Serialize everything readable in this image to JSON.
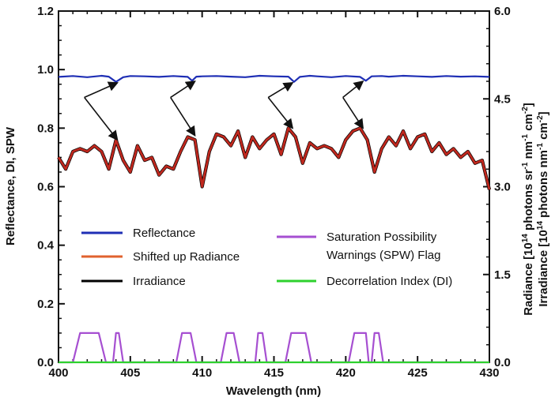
{
  "chart_data": {
    "type": "line",
    "xlabel": "Wavelength (nm)",
    "ylabel_left": "Reflectance, DI, SPW",
    "ylabel_right_line1": "Radiance [10",
    "ylabel_right_line1_sup1": "14",
    "ylabel_right_line1_mid": " photons sr",
    "ylabel_right_line1_sup2": "-1",
    "ylabel_right_line1_mid2": " nm",
    "ylabel_right_line1_sup3": "-1",
    "ylabel_right_line1_mid3": " cm",
    "ylabel_right_line1_sup4": "-2",
    "ylabel_right_line1_end": "]",
    "ylabel_right_line2": "Irradiance [10",
    "ylabel_right_line2_sup1": "14",
    "ylabel_right_line2_mid": " photons nm",
    "ylabel_right_line2_sup2": "-1",
    "ylabel_right_line2_mid2": " cm",
    "ylabel_right_line2_sup3": "-2",
    "ylabel_right_line2_end": "]",
    "xlim": [
      400,
      430
    ],
    "ylim_left": [
      0,
      1.2
    ],
    "ylim_right": [
      0,
      6.0
    ],
    "x_ticks": [
      400,
      405,
      410,
      415,
      420,
      425,
      430
    ],
    "x_tick_labels": [
      "400",
      "405",
      "410",
      "415",
      "420",
      "425",
      "430"
    ],
    "y_left_ticks": [
      0,
      0.2,
      0.4,
      0.6,
      0.8,
      1.0,
      1.2
    ],
    "y_left_tick_labels": [
      "0.0",
      "0.2",
      "0.4",
      "0.6",
      "0.8",
      "1.0",
      "1.2"
    ],
    "y_right_ticks": [
      0,
      1.5,
      3.0,
      4.5,
      6.0
    ],
    "y_right_tick_labels": [
      "0.0",
      "1.5",
      "3.0",
      "4.5",
      "6.0"
    ],
    "legend": {
      "reflectance": "Reflectance",
      "shifted_radiance": "Shifted up Radiance",
      "irradiance": "Irradiance",
      "spw_line1": "Saturation Possibility",
      "spw_line2": "Warnings (SPW) Flag",
      "di": "Decorrelation Index (DI)"
    },
    "colors": {
      "reflectance": "#1f2fb5",
      "radiance": "#c0281e",
      "irradiance": "#000000",
      "spw": "#a64fd1",
      "di": "#2ed12e",
      "legend_radiance": "#e0622e"
    },
    "series": [
      {
        "name": "Reflectance",
        "axis": "left",
        "x": [
          400,
          401,
          402,
          403,
          403.5,
          404,
          404.5,
          405,
          406,
          407,
          408,
          409,
          409.3,
          409.6,
          410,
          411,
          412,
          413,
          414,
          415,
          416,
          416.4,
          416.8,
          417.5,
          418,
          419,
          420,
          421,
          421.4,
          421.8,
          422.5,
          423,
          424,
          425,
          426,
          427,
          428,
          429,
          430
        ],
        "y": [
          0.975,
          0.978,
          0.974,
          0.979,
          0.976,
          0.958,
          0.974,
          0.978,
          0.977,
          0.975,
          0.978,
          0.975,
          0.962,
          0.976,
          0.977,
          0.978,
          0.976,
          0.974,
          0.979,
          0.977,
          0.976,
          0.958,
          0.975,
          0.979,
          0.977,
          0.974,
          0.978,
          0.975,
          0.962,
          0.977,
          0.978,
          0.976,
          0.979,
          0.977,
          0.975,
          0.978,
          0.976,
          0.977,
          0.975
        ]
      },
      {
        "name": "Shifted up Radiance",
        "axis": "left",
        "x": [
          400,
          400.5,
          401,
          401.5,
          402,
          402.5,
          403,
          403.5,
          404,
          404.5,
          405,
          405.5,
          406,
          406.5,
          407,
          407.5,
          408,
          408.5,
          409,
          409.5,
          410,
          410.5,
          411,
          411.5,
          412,
          412.5,
          413,
          413.5,
          414,
          414.5,
          415,
          415.5,
          416,
          416.5,
          417,
          417.5,
          418,
          418.5,
          419,
          419.5,
          420,
          420.5,
          421,
          421.5,
          422,
          422.5,
          423,
          423.5,
          424,
          424.5,
          425,
          425.5,
          426,
          426.5,
          427,
          427.5,
          428,
          428.5,
          429,
          429.5,
          430
        ],
        "y": [
          0.7,
          0.66,
          0.72,
          0.73,
          0.72,
          0.74,
          0.72,
          0.66,
          0.76,
          0.69,
          0.65,
          0.74,
          0.69,
          0.7,
          0.64,
          0.67,
          0.66,
          0.72,
          0.77,
          0.76,
          0.6,
          0.72,
          0.78,
          0.77,
          0.74,
          0.79,
          0.7,
          0.77,
          0.73,
          0.76,
          0.78,
          0.71,
          0.8,
          0.77,
          0.68,
          0.75,
          0.73,
          0.74,
          0.73,
          0.7,
          0.76,
          0.79,
          0.8,
          0.76,
          0.65,
          0.73,
          0.77,
          0.74,
          0.79,
          0.73,
          0.77,
          0.78,
          0.72,
          0.75,
          0.71,
          0.73,
          0.7,
          0.72,
          0.68,
          0.69,
          0.59
        ]
      },
      {
        "name": "Saturation Possibility Warnings (SPW) Flag",
        "axis": "left",
        "x": [
          400,
          401,
          401.5,
          402.8,
          403.3,
          403.8,
          404,
          404.2,
          404.5,
          408.2,
          408.6,
          409.2,
          409.6,
          411.3,
          411.7,
          412.2,
          412.6,
          413.7,
          413.9,
          414.2,
          414.5,
          415.8,
          416.2,
          417.2,
          417.6,
          420.2,
          420.6,
          421.4,
          421.6,
          421.8,
          422,
          422.3,
          422.6,
          430
        ],
        "y": [
          0,
          0,
          0.1,
          0.1,
          0,
          0,
          0.1,
          0.1,
          0,
          0,
          0.1,
          0.1,
          0,
          0,
          0.1,
          0.1,
          0,
          0,
          0.1,
          0.1,
          0,
          0,
          0.1,
          0.1,
          0,
          0,
          0.1,
          0.1,
          0,
          0,
          0.1,
          0.1,
          0,
          0
        ]
      },
      {
        "name": "Decorrelation Index (DI)",
        "axis": "left",
        "x": [
          400,
          430
        ],
        "y": [
          0,
          0
        ]
      }
    ],
    "annotations": [
      {
        "type": "arrow",
        "from": [
          401.8,
          0.905
        ],
        "to": [
          404.1,
          0.955
        ]
      },
      {
        "type": "arrow",
        "from": [
          401.8,
          0.905
        ],
        "to": [
          404.1,
          0.76
        ]
      },
      {
        "type": "arrow",
        "from": [
          407.8,
          0.905
        ],
        "to": [
          409.5,
          0.96
        ]
      },
      {
        "type": "arrow",
        "from": [
          407.8,
          0.905
        ],
        "to": [
          409.5,
          0.775
        ]
      },
      {
        "type": "arrow",
        "from": [
          414.6,
          0.905
        ],
        "to": [
          416.3,
          0.955
        ]
      },
      {
        "type": "arrow",
        "from": [
          414.6,
          0.905
        ],
        "to": [
          416.3,
          0.8
        ]
      },
      {
        "type": "arrow",
        "from": [
          419.8,
          0.905
        ],
        "to": [
          421.2,
          0.96
        ]
      },
      {
        "type": "arrow",
        "from": [
          419.8,
          0.905
        ],
        "to": [
          421.2,
          0.8
        ]
      }
    ],
    "grid": false,
    "legend_placement": "lower-center"
  }
}
